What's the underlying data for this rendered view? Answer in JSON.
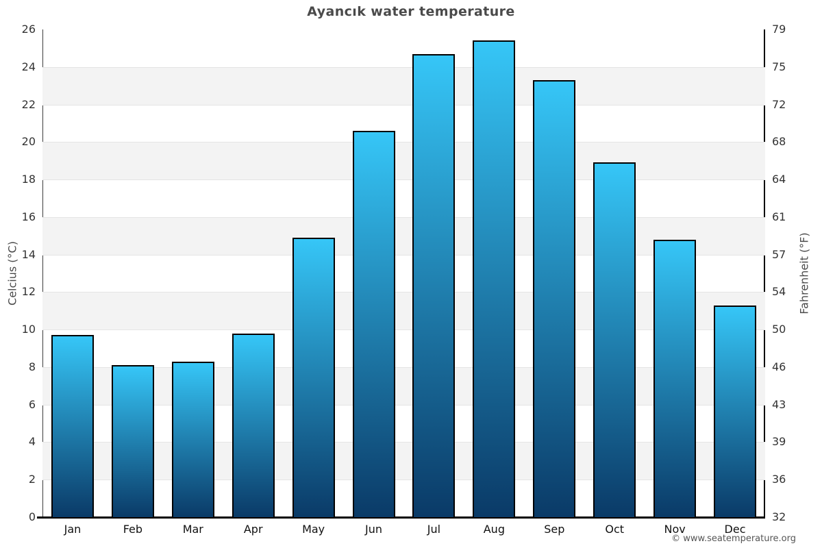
{
  "footer": {
    "copyright": "© www.seatemperature.org"
  },
  "chart_data": {
    "type": "bar",
    "title": "Ayancık water temperature",
    "categories": [
      "Jan",
      "Feb",
      "Mar",
      "Apr",
      "May",
      "Jun",
      "Jul",
      "Aug",
      "Sep",
      "Oct",
      "Nov",
      "Dec"
    ],
    "values": [
      9.7,
      8.1,
      8.3,
      9.8,
      14.9,
      20.6,
      24.7,
      25.4,
      23.3,
      18.9,
      14.8,
      11.3
    ],
    "xlabel": "",
    "ylabel_left": "Celcius (°C)",
    "ylabel_right": "Fahrenheit (°F)",
    "ylim": [
      0,
      26
    ],
    "yticks_left": [
      0,
      2,
      4,
      6,
      8,
      10,
      12,
      14,
      16,
      18,
      20,
      22,
      24,
      26
    ],
    "yticks_right": [
      32,
      36,
      39,
      43,
      46,
      50,
      54,
      57,
      61,
      64,
      68,
      72,
      75,
      79
    ],
    "grid": true,
    "legend": false,
    "colors": {
      "bar_top": "#36c6f7",
      "bar_bottom": "#0a3a67",
      "bar_border": "#000000",
      "band": "#f3f3f3",
      "gridline": "#e4e4e4",
      "background": "#ffffff",
      "title": "#4a4a4a"
    }
  }
}
